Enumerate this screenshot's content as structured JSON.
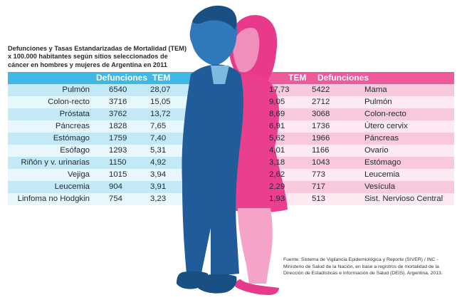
{
  "title_lines": [
    "Defunciones y Tasas Estandarizadas de Mortalidad (TEM)",
    "x 100.000 habitantes según sitios seleccionados de",
    "cáncer en hombres y mujeres de Argentina en 2011"
  ],
  "source_text": "Fuente: Sistema de Vigilancia Epidemiológica y Reporte (SIVER) / INC - Ministerio de Salud de la Nación, en base a registros de mortalidad de la Dirección de Estadísticas e Información de Salud (DEIS). Argentina, 2013.",
  "colors": {
    "men_header": "#3fb8e6",
    "men_row_light": "#c3e9f7",
    "men_row_dark": "#e8f7fc",
    "women_header": "#ee5a9b",
    "women_row_light": "#f8c9dc",
    "women_row_dark": "#fde9f1",
    "man_suit": "#1f5c99",
    "man_skin": "#2f79bb",
    "woman_dress": "#ea3f8d",
    "woman_leg": "#f5a3c8"
  },
  "chart_data": [
    {
      "type": "table",
      "group": "hombres",
      "columns": [
        "",
        "Defunciones",
        "TEM"
      ],
      "rows": [
        {
          "site": "Pulmón",
          "defunciones": "6540",
          "tem": "28,07"
        },
        {
          "site": "Colon-recto",
          "defunciones": "3716",
          "tem": "15,05"
        },
        {
          "site": "Próstata",
          "defunciones": "3762",
          "tem": "13,72"
        },
        {
          "site": "Páncreas",
          "defunciones": "1828",
          "tem": "7,65"
        },
        {
          "site": "Estómago",
          "defunciones": "1759",
          "tem": "7,40"
        },
        {
          "site": "Esófago",
          "defunciones": "1293",
          "tem": "5,31"
        },
        {
          "site": "Riñón y v. urinarias",
          "defunciones": "1150",
          "tem": "4,92"
        },
        {
          "site": "Vejiga",
          "defunciones": "1015",
          "tem": "3,94"
        },
        {
          "site": "Leucemia",
          "defunciones": "904",
          "tem": "3,91"
        },
        {
          "site": "Linfoma no Hodgkin",
          "defunciones": "754",
          "tem": "3,23"
        }
      ]
    },
    {
      "type": "table",
      "group": "mujeres",
      "columns": [
        "TEM",
        "Defunciones",
        ""
      ],
      "rows": [
        {
          "site": "Mama",
          "defunciones": "5422",
          "tem": "17,73"
        },
        {
          "site": "Pulmón",
          "defunciones": "2712",
          "tem": "9,05"
        },
        {
          "site": "Colon-recto",
          "defunciones": "3068",
          "tem": "8,69"
        },
        {
          "site": "Útero cervix",
          "defunciones": "1736",
          "tem": "6,91"
        },
        {
          "site": "Páncreas",
          "defunciones": "1966",
          "tem": "5,62"
        },
        {
          "site": "Ovario",
          "defunciones": "1166",
          "tem": "4,01"
        },
        {
          "site": "Estómago",
          "defunciones": "1043",
          "tem": "3,18"
        },
        {
          "site": "Leucemia",
          "defunciones": "773",
          "tem": "2,62"
        },
        {
          "site": "Vesícula",
          "defunciones": "717",
          "tem": "2,29"
        },
        {
          "site": "Sist. Nervioso Central",
          "defunciones": "513",
          "tem": "1,93"
        }
      ]
    }
  ]
}
